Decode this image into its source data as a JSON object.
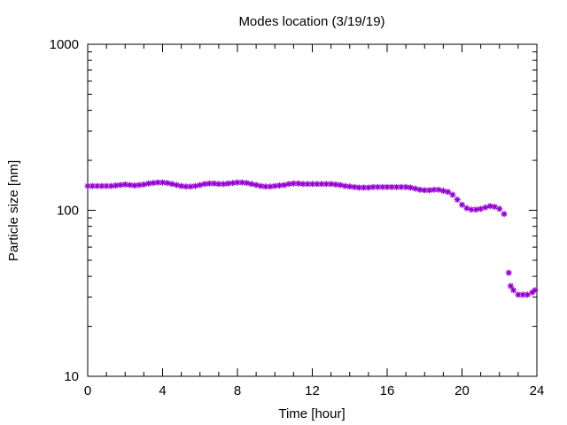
{
  "chart_data": {
    "type": "scatter",
    "title": "Modes location (3/19/19)",
    "xlabel": "Time [hour]",
    "ylabel": "Particle size [nm]",
    "xlim": [
      0,
      24
    ],
    "ylim": [
      10,
      1000
    ],
    "yscale": "log",
    "grid": false,
    "xticks": [
      0,
      4,
      8,
      12,
      16,
      20,
      24
    ],
    "yticks": [
      10,
      100,
      1000
    ],
    "xtick_labels": [
      "0",
      "4",
      "8",
      "12",
      "16",
      "20",
      "24"
    ],
    "ytick_labels": [
      "10",
      "100",
      "1000"
    ],
    "series": [
      {
        "color": "#9400d3",
        "marker": "star",
        "x": [
          0.0,
          0.25,
          0.5,
          0.75,
          1.0,
          1.25,
          1.5,
          1.75,
          2.0,
          2.25,
          2.5,
          2.75,
          3.0,
          3.25,
          3.5,
          3.75,
          4.0,
          4.25,
          4.5,
          4.75,
          5.0,
          5.25,
          5.5,
          5.75,
          6.0,
          6.25,
          6.5,
          6.75,
          7.0,
          7.25,
          7.5,
          7.75,
          8.0,
          8.25,
          8.5,
          8.75,
          9.0,
          9.25,
          9.5,
          9.75,
          10.0,
          10.25,
          10.5,
          10.75,
          11.0,
          11.25,
          11.5,
          11.75,
          12.0,
          12.25,
          12.5,
          12.75,
          13.0,
          13.25,
          13.5,
          13.75,
          14.0,
          14.25,
          14.5,
          14.75,
          15.0,
          15.25,
          15.5,
          15.75,
          16.0,
          16.25,
          16.5,
          16.75,
          17.0,
          17.25,
          17.5,
          17.75,
          18.0,
          18.25,
          18.5,
          18.75,
          19.0,
          19.25,
          19.5,
          19.75,
          20.0,
          20.25,
          20.5,
          20.75,
          21.0,
          21.25,
          21.5,
          21.75,
          22.0,
          22.25,
          22.5,
          22.6,
          22.75,
          23.0,
          23.25,
          23.5,
          23.75,
          23.9
        ],
        "y": [
          140,
          140,
          140,
          140,
          140,
          140,
          141,
          142,
          143,
          142,
          141,
          142,
          143,
          145,
          146,
          147,
          147,
          146,
          144,
          142,
          140,
          139,
          139,
          140,
          142,
          144,
          145,
          145,
          144,
          144,
          145,
          146,
          147,
          147,
          146,
          144,
          142,
          140,
          139,
          139,
          140,
          141,
          142,
          144,
          145,
          145,
          144,
          144,
          144,
          144,
          144,
          144,
          144,
          143,
          142,
          140,
          139,
          138,
          137,
          137,
          137,
          138,
          138,
          138,
          138,
          138,
          138,
          138,
          138,
          137,
          135,
          133,
          132,
          132,
          133,
          133,
          131,
          129,
          124,
          116,
          108,
          103,
          101,
          101,
          102,
          104,
          106,
          105,
          102,
          95,
          42,
          35,
          33,
          31,
          31,
          31,
          32,
          33
        ]
      }
    ]
  }
}
